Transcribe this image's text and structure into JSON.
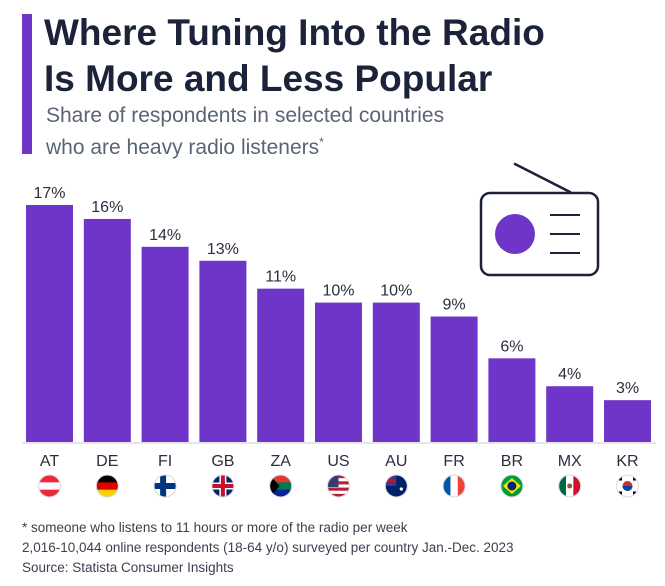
{
  "title_line1": "Where Tuning Into the Radio",
  "title_line2": "Is More and Less Popular",
  "subtitle_line1": "Share of respondents in selected countries",
  "subtitle_line2": "who are heavy radio listeners",
  "subtitle_mark": "*",
  "footnotes": {
    "note": "* someone who listens to 11 hours or more of the radio per week",
    "sample": "2,016-10,044 online respondents (18-64 y/o) surveyed per country Jan.-Dec. 2023",
    "source": "Source: Statista Consumer Insights"
  },
  "colors": {
    "bar": "#6f35c9",
    "title": "#1b2239",
    "text": "#2a2f3d"
  },
  "chart_data": {
    "type": "bar",
    "title": "Where Tuning Into the Radio Is More and Less Popular",
    "xlabel": "",
    "ylabel": "",
    "categories": [
      "AT",
      "DE",
      "FI",
      "GB",
      "ZA",
      "US",
      "AU",
      "FR",
      "BR",
      "MX",
      "KR"
    ],
    "values": [
      17,
      16,
      14,
      13,
      11,
      10,
      10,
      9,
      6,
      4,
      3
    ],
    "labels": [
      "17%",
      "16%",
      "14%",
      "13%",
      "11%",
      "10%",
      "10%",
      "9%",
      "6%",
      "4%",
      "3%"
    ],
    "ylim": [
      0,
      17
    ],
    "grid": false
  }
}
